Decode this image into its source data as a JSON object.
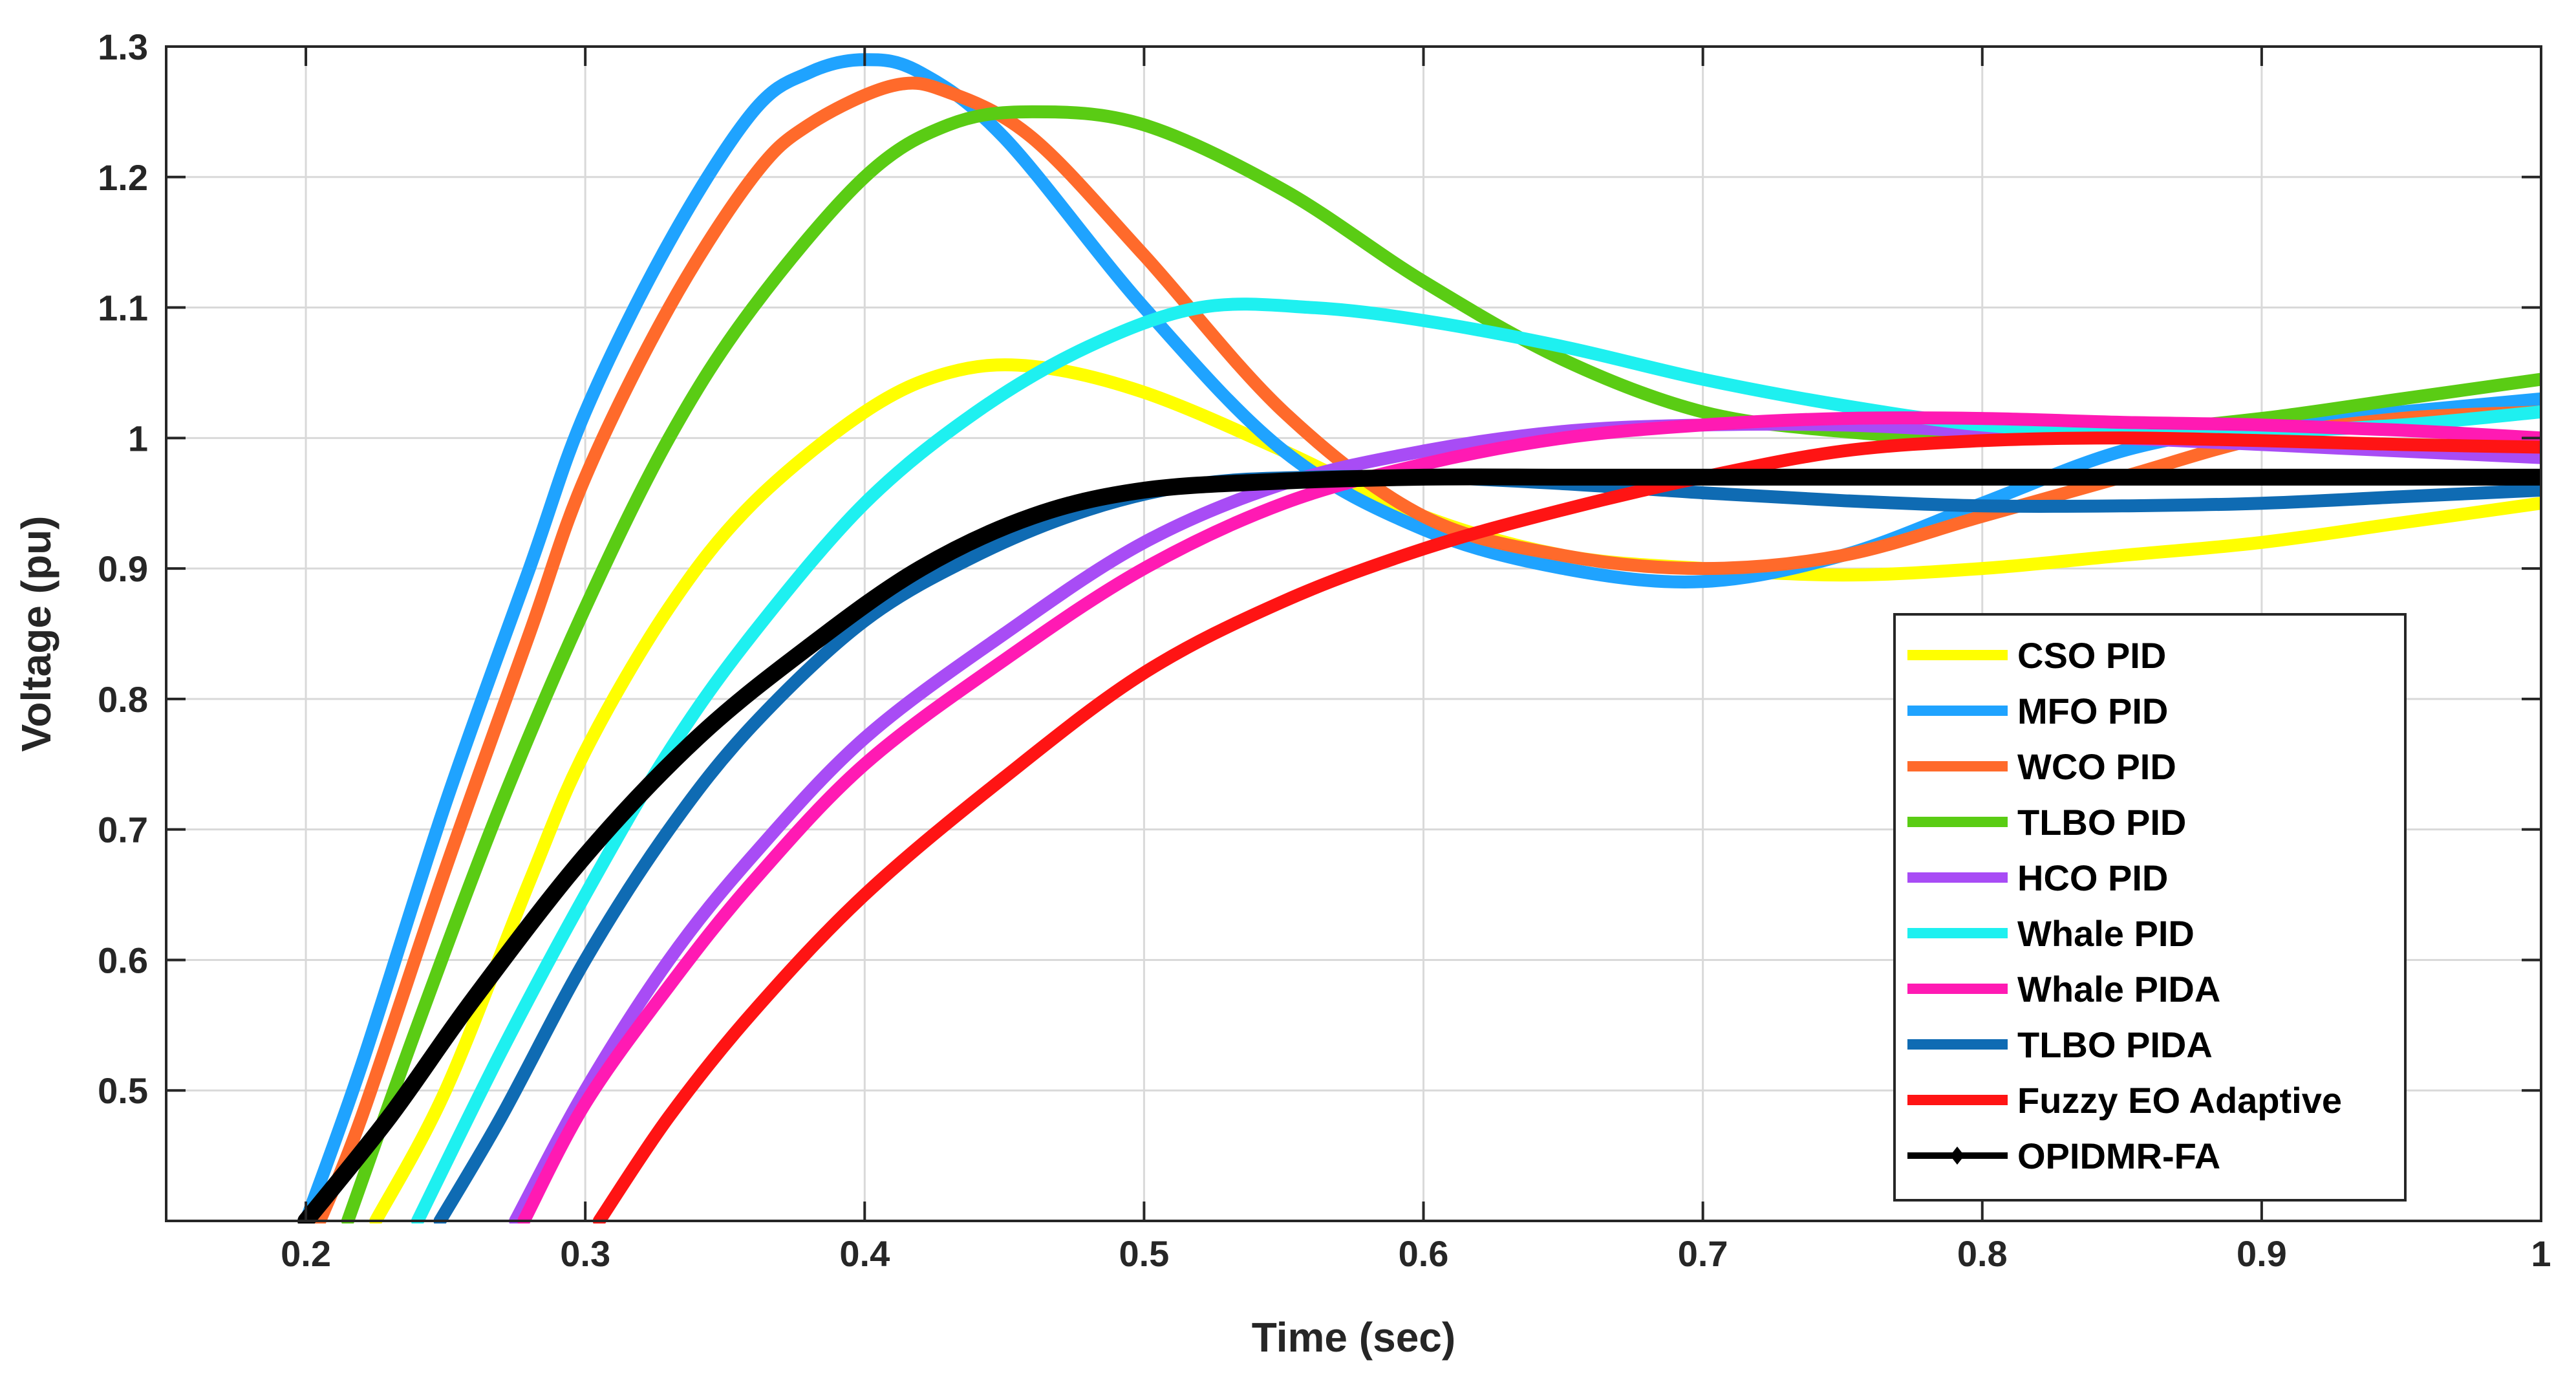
{
  "chart_data": {
    "type": "line",
    "title": "",
    "xlabel": "Time (sec)",
    "ylabel": "Voltage (pu)",
    "xlim": [
      0.15,
      1.0
    ],
    "ylim": [
      0.4,
      1.3
    ],
    "grid": true,
    "legend_position": "right-middle",
    "xticks": [
      0.2,
      0.3,
      0.4,
      0.5,
      0.6,
      0.7,
      0.8,
      0.9,
      1.0
    ],
    "xtick_labels": [
      "0.2",
      "0.3",
      "0.4",
      "0.5",
      "0.6",
      "0.7",
      "0.8",
      "0.9",
      "1"
    ],
    "yticks": [
      0.5,
      0.6,
      0.7,
      0.8,
      0.9,
      1.0,
      1.1,
      1.2,
      1.3
    ],
    "ytick_labels": [
      "0.5",
      "0.6",
      "0.7",
      "0.8",
      "0.9",
      "1",
      "1.1",
      "1.2",
      "1.3"
    ],
    "series": [
      {
        "name": "CSO PID",
        "color": "#FFFF00",
        "x": [
          0.225,
          0.25,
          0.28,
          0.3,
          0.33,
          0.36,
          0.4,
          0.43,
          0.46,
          0.5,
          0.55,
          0.6,
          0.65,
          0.7,
          0.75,
          0.8,
          0.85,
          0.9,
          0.95,
          1.0
        ],
        "y": [
          0.4,
          0.5,
          0.66,
          0.76,
          0.87,
          0.95,
          1.02,
          1.05,
          1.055,
          1.035,
          0.99,
          0.94,
          0.91,
          0.9,
          0.895,
          0.9,
          0.91,
          0.92,
          0.935,
          0.95
        ]
      },
      {
        "name": "MFO PID",
        "color": "#1FA3FF",
        "x": [
          0.2,
          0.22,
          0.25,
          0.28,
          0.3,
          0.33,
          0.36,
          0.38,
          0.4,
          0.42,
          0.45,
          0.5,
          0.55,
          0.6,
          0.65,
          0.7,
          0.75,
          0.8,
          0.85,
          0.9,
          0.95,
          1.0
        ],
        "y": [
          0.4,
          0.52,
          0.72,
          0.9,
          1.02,
          1.15,
          1.25,
          1.28,
          1.29,
          1.28,
          1.23,
          1.1,
          0.99,
          0.93,
          0.9,
          0.89,
          0.91,
          0.95,
          0.99,
          1.01,
          1.02,
          1.03
        ]
      },
      {
        "name": "WCO PID",
        "color": "#FF6A2B",
        "x": [
          0.205,
          0.22,
          0.25,
          0.28,
          0.3,
          0.33,
          0.36,
          0.38,
          0.41,
          0.43,
          0.46,
          0.5,
          0.55,
          0.6,
          0.65,
          0.7,
          0.75,
          0.8,
          0.85,
          0.9,
          0.95,
          1.0
        ],
        "y": [
          0.4,
          0.48,
          0.67,
          0.85,
          0.97,
          1.1,
          1.2,
          1.24,
          1.27,
          1.265,
          1.23,
          1.14,
          1.02,
          0.94,
          0.91,
          0.9,
          0.91,
          0.94,
          0.97,
          1.0,
          1.015,
          1.02
        ]
      },
      {
        "name": "TLBO PID",
        "color": "#5ACC14",
        "x": [
          0.215,
          0.24,
          0.27,
          0.3,
          0.33,
          0.36,
          0.4,
          0.43,
          0.46,
          0.5,
          0.55,
          0.6,
          0.65,
          0.7,
          0.75,
          0.8,
          0.85,
          0.9,
          0.95,
          1.0
        ],
        "y": [
          0.4,
          0.55,
          0.72,
          0.87,
          1.0,
          1.1,
          1.2,
          1.24,
          1.25,
          1.24,
          1.19,
          1.12,
          1.06,
          1.02,
          1.005,
          1.0,
          1.005,
          1.015,
          1.03,
          1.045
        ]
      },
      {
        "name": "HCO PID",
        "color": "#A84CF5",
        "x": [
          0.275,
          0.3,
          0.33,
          0.36,
          0.4,
          0.45,
          0.5,
          0.55,
          0.6,
          0.65,
          0.7,
          0.75,
          0.8,
          0.85,
          0.9,
          0.95,
          1.0
        ],
        "y": [
          0.4,
          0.5,
          0.6,
          0.68,
          0.77,
          0.85,
          0.92,
          0.965,
          0.99,
          1.005,
          1.01,
          1.01,
          1.005,
          1.0,
          0.995,
          0.99,
          0.985
        ]
      },
      {
        "name": "Whale PID",
        "color": "#1EF0F0",
        "x": [
          0.24,
          0.27,
          0.3,
          0.33,
          0.36,
          0.4,
          0.44,
          0.48,
          0.52,
          0.56,
          0.6,
          0.65,
          0.7,
          0.75,
          0.8,
          0.85,
          0.9,
          0.95,
          1.0
        ],
        "y": [
          0.4,
          0.53,
          0.65,
          0.76,
          0.85,
          0.95,
          1.02,
          1.07,
          1.1,
          1.1,
          1.09,
          1.07,
          1.045,
          1.025,
          1.01,
          1.005,
          1.005,
          1.01,
          1.02
        ]
      },
      {
        "name": "Whale PIDA",
        "color": "#FF1AB3",
        "x": [
          0.278,
          0.3,
          0.33,
          0.36,
          0.4,
          0.45,
          0.5,
          0.55,
          0.6,
          0.65,
          0.7,
          0.75,
          0.8,
          0.85,
          0.9,
          0.95,
          1.0
        ],
        "y": [
          0.4,
          0.49,
          0.58,
          0.66,
          0.75,
          0.83,
          0.9,
          0.95,
          0.98,
          1.0,
          1.01,
          1.015,
          1.015,
          1.012,
          1.01,
          1.006,
          1.0
        ]
      },
      {
        "name": "TLBO PIDA",
        "color": "#0F6BB3",
        "x": [
          0.248,
          0.27,
          0.3,
          0.33,
          0.36,
          0.4,
          0.44,
          0.48,
          0.52,
          0.56,
          0.6,
          0.65,
          0.7,
          0.75,
          0.8,
          0.85,
          0.9,
          0.95,
          1.0
        ],
        "y": [
          0.4,
          0.48,
          0.6,
          0.7,
          0.78,
          0.86,
          0.91,
          0.945,
          0.965,
          0.97,
          0.97,
          0.965,
          0.958,
          0.952,
          0.948,
          0.948,
          0.95,
          0.955,
          0.96
        ]
      },
      {
        "name": "Fuzzy EO Adaptive",
        "color": "#FF1414",
        "x": [
          0.305,
          0.33,
          0.36,
          0.4,
          0.45,
          0.5,
          0.55,
          0.6,
          0.65,
          0.7,
          0.75,
          0.8,
          0.85,
          0.9,
          0.95,
          1.0
        ],
        "y": [
          0.4,
          0.48,
          0.56,
          0.65,
          0.74,
          0.82,
          0.875,
          0.915,
          0.945,
          0.97,
          0.99,
          0.998,
          1.0,
          0.998,
          0.995,
          0.993
        ]
      },
      {
        "name": "OPIDMR-FA",
        "color": "#000000",
        "x": [
          0.2,
          0.23,
          0.26,
          0.3,
          0.34,
          0.38,
          0.42,
          0.46,
          0.5,
          0.55,
          0.6,
          0.65,
          0.7,
          0.75,
          0.8,
          0.85,
          0.9,
          0.95,
          1.0
        ],
        "y": [
          0.4,
          0.48,
          0.57,
          0.68,
          0.77,
          0.84,
          0.9,
          0.94,
          0.96,
          0.967,
          0.97,
          0.97,
          0.97,
          0.97,
          0.97,
          0.97,
          0.97,
          0.97,
          0.97
        ]
      }
    ]
  }
}
